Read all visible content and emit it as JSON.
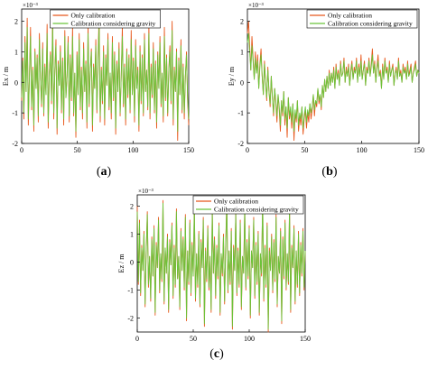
{
  "chart_data": [
    {
      "type": "line",
      "panel": "a",
      "caption_open": "(",
      "caption_letter": "a",
      "caption_close": ")",
      "ylabel": "Ex / m",
      "exponent": "×10⁻³",
      "xlim": [
        0,
        150
      ],
      "ylim": [
        -2,
        2.4
      ],
      "xticks": [
        0,
        50,
        100,
        150
      ],
      "yticks": [
        -2,
        -1,
        0,
        1,
        2
      ],
      "legend_position": "top-center",
      "series": [
        {
          "name": "Only calibration",
          "color": "#e8581c",
          "values": [
            -0.6,
            0.8,
            -1.2,
            1.5,
            -0.3,
            2.1,
            -1.4,
            0.2,
            1.8,
            -0.9,
            0.5,
            -1.6,
            1.1,
            -0.2,
            0.9,
            -1.3,
            1.6,
            0.1,
            -0.8,
            1.3,
            -1.1,
            0.6,
            -0.4,
            1.9,
            -1.5,
            0.3,
            1.0,
            -0.7,
            2.3,
            -1.2,
            0.4,
            1.4,
            -1.7,
            0.7,
            -0.1,
            1.2,
            -1.0,
            0.8,
            -1.4,
            1.7,
            -0.5,
            0.2,
            1.5,
            -1.3,
            0.9,
            -0.6,
            1.8,
            -1.1,
            0.3,
            -1.8,
            1.0,
            -0.4,
            1.6,
            -0.9,
            0.5,
            -1.2,
            1.3,
            -0.3,
            0.7,
            -1.5,
            1.9,
            -0.8,
            0.4,
            1.1,
            -1.6,
            0.6,
            -0.2,
            1.4,
            -1.0,
            0.8,
            2.2,
            -1.3,
            0.5,
            -0.7,
            1.2,
            -1.4,
            0.9,
            -0.1,
            1.6,
            -0.9,
            0.3,
            -1.2,
            1.5,
            -0.6,
            1.0,
            -1.7,
            0.7,
            -0.3,
            1.3,
            -1.1,
            0.2,
            1.8,
            -0.8,
            0.6,
            -1.4,
            1.1,
            -0.5,
            0.9,
            -1.0,
            1.7,
            -0.4,
            0.8,
            -1.3,
            1.4,
            -0.2,
            0.5,
            -1.6,
            1.2,
            -0.7,
            0.9,
            -1.1,
            1.6,
            -0.3,
            0.4,
            -0.9,
            1.9,
            -1.2,
            0.6,
            -0.5,
            1.3,
            -1.0,
            0.7,
            -1.5,
            1.0,
            -0.2,
            1.5,
            -0.8,
            0.3,
            -1.3,
            1.8,
            -0.6,
            0.9,
            -1.1,
            0.4,
            1.2,
            -0.7,
            2.0,
            -1.4,
            0.5,
            -0.3,
            1.1,
            -1.9,
            0.8,
            -0.4,
            1.4,
            -1.0,
            0.6,
            -1.2,
            0.2,
            1.0,
            -0.6,
            -1.4
          ]
        },
        {
          "name": "Calibration considering gravity",
          "color": "#6ac43a",
          "values": [
            -0.5,
            0.7,
            -1.0,
            1.3,
            -0.3,
            1.8,
            -1.2,
            0.2,
            1.5,
            -0.8,
            0.4,
            -1.4,
            1.0,
            -0.2,
            0.8,
            -1.1,
            1.4,
            0.1,
            -0.7,
            1.1,
            -1.0,
            0.5,
            -0.4,
            1.6,
            -1.3,
            0.3,
            0.9,
            -0.6,
            1.9,
            -1.0,
            0.4,
            1.2,
            -1.5,
            0.6,
            -0.1,
            1.0,
            -0.9,
            0.7,
            -1.2,
            1.5,
            -0.5,
            0.2,
            1.3,
            -1.1,
            0.8,
            -0.5,
            1.5,
            -1.0,
            0.3,
            -1.6,
            0.9,
            -0.4,
            1.4,
            -0.8,
            0.4,
            -1.0,
            1.1,
            -0.3,
            0.6,
            -1.3,
            1.6,
            -0.7,
            0.4,
            1.0,
            -1.4,
            0.5,
            -0.2,
            1.2,
            -0.9,
            0.7,
            1.8,
            -1.1,
            0.4,
            -0.6,
            1.0,
            -1.2,
            0.8,
            -0.1,
            1.4,
            -0.8,
            0.3,
            -1.0,
            1.3,
            -0.5,
            0.9,
            -1.5,
            0.6,
            -0.3,
            1.1,
            -1.0,
            0.2,
            1.5,
            -0.7,
            0.5,
            -1.2,
            1.0,
            -0.4,
            0.8,
            -0.9,
            1.4,
            -0.4,
            0.7,
            -1.1,
            1.2,
            -0.2,
            0.4,
            -1.4,
            1.0,
            -0.6,
            0.8,
            -1.0,
            1.4,
            -0.3,
            0.4,
            -0.8,
            1.6,
            -1.0,
            0.5,
            -0.4,
            1.1,
            -0.9,
            0.6,
            -1.3,
            0.9,
            -0.2,
            1.3,
            -0.7,
            0.3,
            -1.1,
            1.5,
            -0.5,
            0.8,
            -1.0,
            0.4,
            1.0,
            -0.6,
            1.7,
            -1.2,
            0.4,
            -0.3,
            1.0,
            -1.6,
            0.7,
            -0.4,
            1.2,
            -0.9,
            0.5,
            -1.0,
            0.2,
            0.9,
            -0.5,
            -1.2
          ]
        }
      ]
    },
    {
      "type": "line",
      "panel": "b",
      "caption_open": "(",
      "caption_letter": "b",
      "caption_close": ")",
      "ylabel": "Ey / m",
      "exponent": "×10⁻³",
      "xlim": [
        0,
        150
      ],
      "ylim": [
        -2,
        2.4
      ],
      "xticks": [
        0,
        50,
        100,
        150
      ],
      "yticks": [
        -2,
        -1,
        0,
        1,
        2
      ],
      "legend_position": "top-right",
      "series": [
        {
          "name": "Only calibration",
          "color": "#e8581c",
          "values": [
            1.6,
            2.0,
            1.2,
            0.4,
            1.5,
            0.8,
            0.1,
            1.0,
            0.3,
            0.9,
            -0.2,
            0.6,
            1.1,
            0.2,
            -0.4,
            0.7,
            0.0,
            -0.6,
            0.5,
            -0.3,
            -0.8,
            0.2,
            -0.5,
            -1.1,
            -0.2,
            -0.7,
            -1.3,
            -0.4,
            -0.9,
            -1.6,
            -0.6,
            -1.1,
            -0.3,
            -1.4,
            -0.8,
            -1.8,
            -0.5,
            -1.2,
            -0.9,
            -1.5,
            -0.7,
            -1.9,
            -1.0,
            -1.3,
            -0.6,
            -1.6,
            -1.1,
            -1.4,
            -0.8,
            -1.7,
            -1.2,
            -0.9,
            -1.5,
            -1.0,
            -1.3,
            -0.7,
            -1.2,
            -0.9,
            -0.4,
            -1.1,
            -0.6,
            -0.8,
            -0.2,
            -0.7,
            -0.4,
            -0.9,
            -0.1,
            -0.5,
            0.1,
            -0.3,
            0.2,
            -0.2,
            0.4,
            -0.1,
            0.3,
            0.0,
            0.5,
            -0.2,
            0.6,
            0.1,
            0.4,
            -0.1,
            0.7,
            0.2,
            0.3,
            0.8,
            0.0,
            0.5,
            0.2,
            0.6,
            -0.1,
            0.4,
            0.7,
            0.1,
            0.5,
            0.3,
            0.8,
            0.0,
            0.6,
            0.2,
            0.9,
            0.1,
            0.4,
            0.7,
            -0.1,
            0.5,
            0.3,
            0.8,
            0.2,
            0.6,
            1.1,
            0.3,
            0.7,
            0.0,
            0.5,
            0.9,
            0.2,
            0.4,
            -0.2,
            0.6,
            0.1,
            0.8,
            0.3,
            0.5,
            0.0,
            0.7,
            0.2,
            0.4,
            0.6,
            -0.1,
            0.3,
            0.5,
            0.1,
            0.8,
            0.2,
            0.4,
            0.0,
            0.6,
            0.3,
            0.5,
            0.1,
            0.7,
            0.2,
            0.4,
            0.6,
            0.0,
            0.3,
            0.5,
            0.7,
            0.2,
            0.4,
            0.3
          ]
        },
        {
          "name": "Calibration considering gravity",
          "color": "#6ac43a",
          "values": [
            1.3,
            1.6,
            1.0,
            0.4,
            1.2,
            0.7,
            0.1,
            0.8,
            0.3,
            0.7,
            -0.2,
            0.5,
            0.9,
            0.2,
            -0.4,
            0.6,
            0.0,
            -0.5,
            0.4,
            -0.3,
            -0.7,
            0.2,
            -0.5,
            -1.0,
            -0.2,
            -0.6,
            -1.1,
            -0.4,
            -0.8,
            -1.4,
            -0.6,
            -1.0,
            -0.3,
            -1.2,
            -0.8,
            -1.5,
            -0.5,
            -1.1,
            -0.8,
            -1.3,
            -0.7,
            -1.6,
            -0.9,
            -1.2,
            -0.6,
            -1.4,
            -1.0,
            -1.2,
            -0.8,
            -1.5,
            -1.1,
            -0.8,
            -1.3,
            -0.9,
            -1.1,
            -0.7,
            -1.0,
            -0.8,
            -0.4,
            -0.9,
            -0.6,
            -0.7,
            -0.2,
            -0.6,
            -0.4,
            -0.8,
            -0.1,
            -0.5,
            0.1,
            -0.3,
            0.2,
            -0.2,
            0.3,
            -0.1,
            0.3,
            0.0,
            0.4,
            -0.2,
            0.5,
            0.1,
            0.3,
            -0.1,
            0.6,
            0.2,
            0.3,
            0.7,
            0.0,
            0.4,
            0.2,
            0.5,
            -0.1,
            0.3,
            0.6,
            0.1,
            0.4,
            0.3,
            0.7,
            0.0,
            0.5,
            0.2,
            0.7,
            0.1,
            0.4,
            0.6,
            -0.1,
            0.4,
            0.3,
            0.7,
            0.2,
            0.5,
            0.9,
            0.3,
            0.6,
            0.0,
            0.4,
            0.7,
            0.2,
            0.3,
            -0.2,
            0.5,
            0.1,
            0.7,
            0.3,
            0.4,
            0.0,
            0.6,
            0.2,
            0.4,
            0.5,
            -0.1,
            0.3,
            0.4,
            0.1,
            0.7,
            0.2,
            0.3,
            0.0,
            0.5,
            0.3,
            0.4,
            0.1,
            0.6,
            0.2,
            0.3,
            0.5,
            0.0,
            0.3,
            0.4,
            0.6,
            0.2,
            0.4,
            0.3
          ]
        }
      ]
    },
    {
      "type": "line",
      "panel": "c",
      "caption_open": "(",
      "caption_letter": "c",
      "caption_close": ")",
      "ylabel": "Ez / m",
      "exponent": "×10⁻³",
      "xlim": [
        0,
        150
      ],
      "ylim": [
        -2.5,
        2.4
      ],
      "xticks": [
        0,
        50,
        100,
        150
      ],
      "yticks": [
        -2,
        -1,
        0,
        1,
        2
      ],
      "legend_position": "top-right",
      "series": [
        {
          "name": "Only calibration",
          "color": "#e8581c",
          "values": [
            2.0,
            -0.8,
            1.5,
            -1.2,
            0.6,
            -0.3,
            1.1,
            -1.6,
            0.4,
            1.8,
            -0.9,
            0.2,
            -1.4,
            0.9,
            -0.5,
            1.3,
            -1.9,
            0.7,
            -0.2,
            1.6,
            -1.1,
            0.3,
            -0.7,
            2.2,
            -1.5,
            0.5,
            -0.4,
            1.0,
            -1.8,
            0.8,
            -0.1,
            1.4,
            -1.3,
            0.6,
            -0.9,
            1.9,
            -0.6,
            0.2,
            -1.7,
            1.2,
            -0.3,
            0.9,
            -1.0,
            1.7,
            -2.1,
            0.4,
            -0.8,
            1.5,
            -1.2,
            0.7,
            -0.5,
            2.1,
            -1.4,
            0.3,
            -0.9,
            1.1,
            -1.6,
            0.8,
            -0.2,
            1.6,
            -2.3,
            0.5,
            -0.7,
            1.3,
            -1.0,
            0.2,
            -1.8,
            1.9,
            -0.4,
            0.9,
            -1.3,
            0.6,
            -0.6,
            1.4,
            -1.9,
            0.3,
            -0.5,
            1.0,
            -1.5,
            0.7,
            2.2,
            -1.1,
            0.4,
            -0.8,
            1.2,
            -2.4,
            0.6,
            -0.3,
            1.8,
            -1.2,
            0.5,
            -0.9,
            1.5,
            -1.7,
            0.2,
            -0.4,
            2.0,
            -1.0,
            0.8,
            -0.6,
            1.3,
            -2.0,
            0.4,
            -0.2,
            1.6,
            -1.3,
            0.7,
            -0.8,
            1.1,
            -1.9,
            0.3,
            -0.5,
            2.3,
            -1.4,
            0.6,
            -0.9,
            1.4,
            -2.5,
            0.5,
            -0.3,
            1.0,
            -1.1,
            0.8,
            -0.7,
            1.7,
            -1.6,
            0.2,
            -0.4,
            1.2,
            -2.2,
            0.9,
            -0.6,
            1.5,
            -1.0,
            0.3,
            -0.8,
            2.0,
            -1.8,
            0.6,
            -0.2,
            1.3,
            -1.5,
            0.4,
            -0.9,
            1.1,
            -1.2,
            0.7,
            -0.5,
            1.2,
            -1.0,
            0.4
          ]
        },
        {
          "name": "Calibration considering gravity",
          "color": "#6ac43a",
          "values": [
            1.8,
            -0.7,
            1.4,
            -1.1,
            0.5,
            -0.3,
            1.0,
            -1.5,
            0.4,
            1.7,
            -0.8,
            0.2,
            -1.3,
            0.8,
            -0.5,
            1.2,
            -1.8,
            0.6,
            -0.2,
            1.5,
            -1.0,
            0.3,
            -0.6,
            2.1,
            -1.4,
            0.5,
            -0.4,
            0.9,
            -1.7,
            0.7,
            -0.1,
            1.3,
            -1.2,
            0.5,
            -0.8,
            1.8,
            -0.6,
            0.2,
            -1.6,
            1.1,
            -0.3,
            0.8,
            -0.9,
            1.6,
            -2.0,
            0.4,
            -0.7,
            1.4,
            -1.1,
            0.6,
            -0.5,
            2.0,
            -1.3,
            0.3,
            -0.8,
            1.0,
            -1.5,
            0.7,
            -0.2,
            1.5,
            -2.2,
            0.4,
            -0.6,
            1.2,
            -0.9,
            0.2,
            -1.7,
            1.8,
            -0.4,
            0.8,
            -1.2,
            0.5,
            -0.5,
            1.3,
            -1.8,
            0.3,
            -0.4,
            0.9,
            -1.4,
            0.6,
            2.1,
            -1.0,
            0.4,
            -0.7,
            1.1,
            -2.3,
            0.5,
            -0.3,
            1.7,
            -1.1,
            0.4,
            -0.8,
            1.4,
            -1.6,
            0.2,
            -0.4,
            1.9,
            -0.9,
            0.7,
            -0.5,
            1.2,
            -1.9,
            0.4,
            -0.2,
            1.5,
            -1.2,
            0.6,
            -0.7,
            1.0,
            -1.8,
            0.3,
            -0.4,
            2.2,
            -1.3,
            0.5,
            -0.8,
            1.3,
            -2.4,
            0.4,
            -0.3,
            0.9,
            -1.0,
            0.7,
            -0.6,
            1.6,
            -1.5,
            0.2,
            -0.4,
            1.1,
            -2.1,
            0.8,
            -0.5,
            1.4,
            -0.9,
            0.3,
            -0.7,
            1.9,
            -1.7,
            0.5,
            -0.2,
            1.2,
            -1.4,
            0.4,
            -0.8,
            1.0,
            -1.1,
            0.6,
            -0.4,
            1.1,
            -0.9,
            0.4
          ]
        }
      ]
    }
  ]
}
